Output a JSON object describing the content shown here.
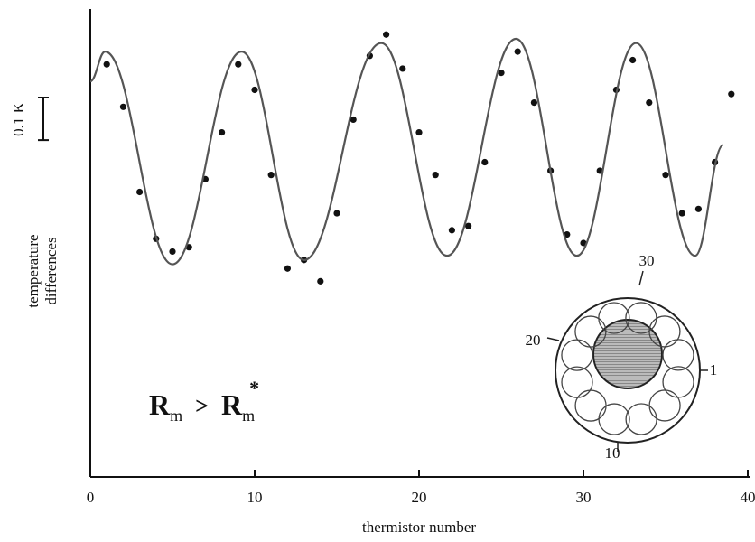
{
  "chart_data": {
    "type": "scatter",
    "xlabel": "thermistor number",
    "ylabel_lines": [
      "temperature",
      "differences"
    ],
    "xlim": [
      0,
      40
    ],
    "xticks": [
      0,
      10,
      20,
      30,
      40
    ],
    "ylim": [
      -0.76,
      0.34
    ],
    "scale_bar": {
      "value": 0.1,
      "label": "0.1 K"
    },
    "series": [
      {
        "style": "markers",
        "color": "#111111",
        "x": [
          1,
          2,
          3,
          4,
          5,
          6,
          7,
          8,
          9,
          10,
          11,
          12,
          13,
          14,
          15,
          16,
          17,
          18,
          19,
          20,
          21,
          22,
          23,
          24,
          25,
          26,
          27,
          28,
          29,
          30,
          31,
          32,
          33,
          34,
          35,
          36,
          37,
          38,
          39
        ],
        "values": [
          0.21,
          0.11,
          -0.09,
          -0.2,
          -0.23,
          -0.22,
          -0.06,
          0.05,
          0.21,
          0.15,
          -0.05,
          -0.27,
          -0.25,
          -0.3,
          -0.14,
          0.08,
          0.23,
          0.28,
          0.2,
          0.05,
          -0.05,
          -0.18,
          -0.17,
          -0.02,
          0.19,
          0.24,
          0.12,
          -0.04,
          -0.19,
          -0.21,
          -0.04,
          0.15,
          0.22,
          0.12,
          -0.05,
          -0.14,
          -0.13,
          -0.02,
          0.14
        ]
      },
      {
        "style": "line",
        "color": "#555555",
        "x": [
          0,
          0.9,
          5.0,
          9.2,
          13.0,
          17.7,
          21.7,
          25.9,
          29.6,
          33.2,
          36.8,
          38.5
        ],
        "values": [
          0.17,
          0.24,
          -0.26,
          0.24,
          -0.25,
          0.26,
          -0.24,
          0.27,
          -0.24,
          0.26,
          -0.24,
          0.02
        ]
      }
    ],
    "annotation": {
      "left": "R",
      "left_sub": "m",
      "op": ">",
      "right": "R",
      "right_sub": "m",
      "right_sup": "*"
    },
    "inset_labels": [
      30,
      20,
      1,
      10
    ]
  }
}
